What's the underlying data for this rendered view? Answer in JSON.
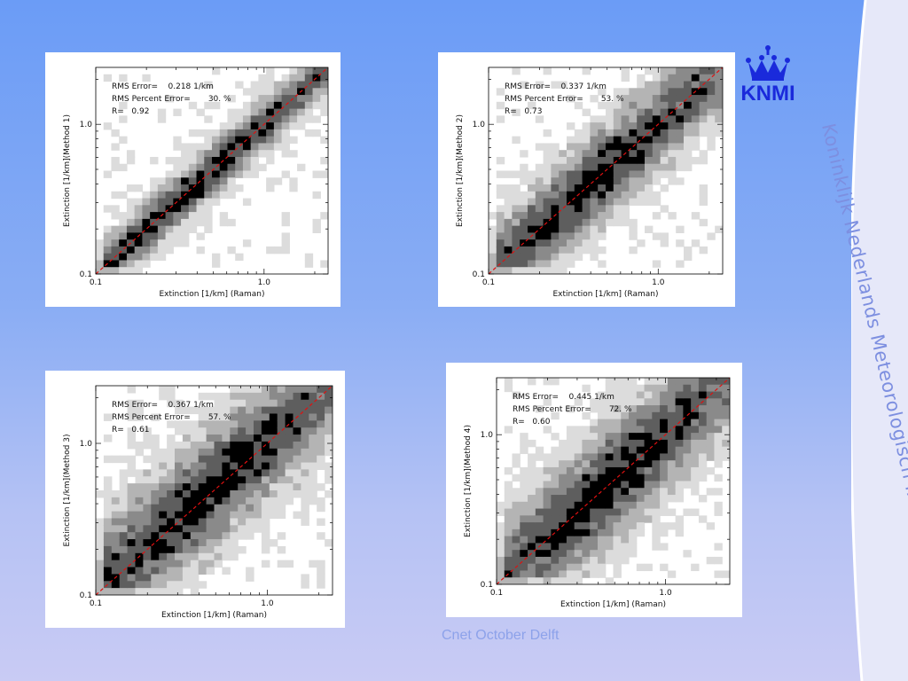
{
  "brand": {
    "logo_text": "KNMI",
    "vertical_text": "Koninklijk Nederlands Meteorologisch Instituut",
    "footer_text": "Cnet October Delft",
    "accent": "#1a2adb",
    "text_color": "#7d8fe0"
  },
  "chart_data": [
    {
      "type": "heatmap",
      "xlabel": "Extinction [1/km] (Raman)",
      "ylabel": "Extinction [1/km](Method 1)",
      "x_ticks": [
        "0.1",
        "1.0"
      ],
      "y_ticks": [
        "0.1",
        "1.0"
      ],
      "xlim": [
        0.1,
        2.4
      ],
      "ylim": [
        0.1,
        2.4
      ],
      "scale": "log",
      "stats": {
        "rms_error": "RMS Error=    0.218 1/km",
        "rms_percent": "RMS Percent Error=       30. %",
        "r": "R=   0.92"
      },
      "r_value": 0.92,
      "reference_line": "1:1 (red dashed)"
    },
    {
      "type": "heatmap",
      "xlabel": "Extinction [1/km] (Raman)",
      "ylabel": "Extinction [1/km](Method 2)",
      "x_ticks": [
        "0.1",
        "1.0"
      ],
      "y_ticks": [
        "0.1",
        "1.0"
      ],
      "xlim": [
        0.1,
        2.4
      ],
      "ylim": [
        0.1,
        2.4
      ],
      "scale": "log",
      "stats": {
        "rms_error": "RMS Error=    0.337 1/km",
        "rms_percent": "RMS Percent Error=       53. %",
        "r": "R=   0.73"
      },
      "r_value": 0.73,
      "reference_line": "1:1 (red dashed)"
    },
    {
      "type": "heatmap",
      "xlabel": "Extinction [1/km] (Raman)",
      "ylabel": "Extinction [1/km](Method 3)",
      "x_ticks": [
        "0.1",
        "1.0"
      ],
      "y_ticks": [
        "0.1",
        "1.0"
      ],
      "xlim": [
        0.1,
        2.4
      ],
      "ylim": [
        0.1,
        2.4
      ],
      "scale": "log",
      "stats": {
        "rms_error": "RMS Error=    0.367 1/km",
        "rms_percent": "RMS Percent Error=       57. %",
        "r": "R=   0.61"
      },
      "r_value": 0.61,
      "reference_line": "1:1 (red dashed)"
    },
    {
      "type": "heatmap",
      "xlabel": "Extinction [1/km] (Raman)",
      "ylabel": "Extinction [1/km](Method 4)",
      "x_ticks": [
        "0.1",
        "1.0"
      ],
      "y_ticks": [
        "0.1",
        "1.0"
      ],
      "xlim": [
        0.1,
        2.4
      ],
      "ylim": [
        0.1,
        2.4
      ],
      "scale": "log",
      "stats": {
        "rms_error": "RMS Error=    0.445 1/km",
        "rms_percent": "RMS Percent Error=       72. %",
        "r": "R=   0.60"
      },
      "r_value": 0.6,
      "reference_line": "1:1 (red dashed)"
    }
  ]
}
